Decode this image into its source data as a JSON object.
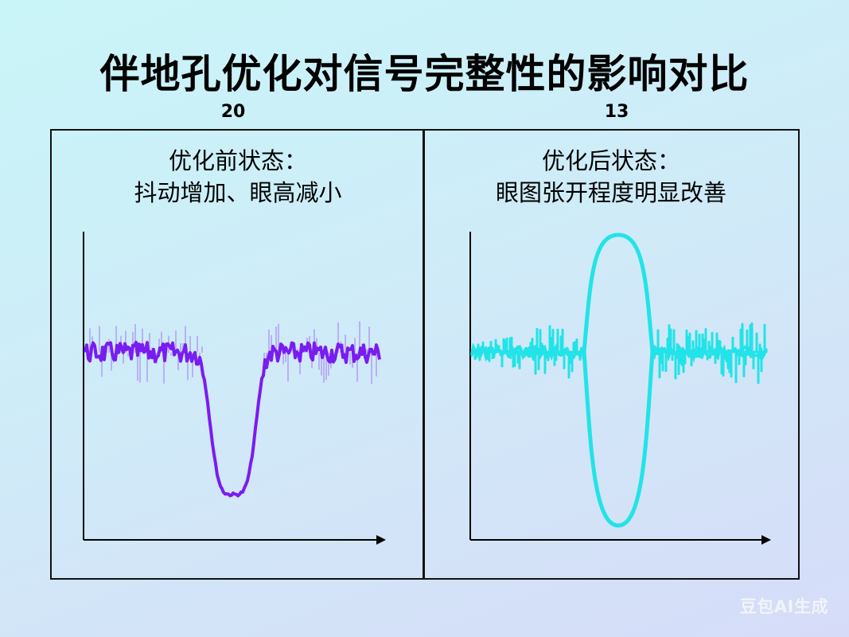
{
  "title": "伴地孔优化对信号完整性的影响对比",
  "panels": [
    {
      "number_label": "20",
      "heading_line1": "优化前状态：",
      "heading_line2": "抖动增加、眼高减小",
      "trace_color": "#7a1cf0"
    },
    {
      "number_label": "13",
      "heading_line1": "优化后状态：",
      "heading_line2": "眼图张开程度明显改善",
      "trace_color": "#22e3e8"
    }
  ],
  "watermark": "豆包AI生成",
  "colors": {
    "background_top": "#c9f5f8",
    "background_bottom": "#d6dcf8",
    "frame": "#111111",
    "before_trace": "#7a1cf0",
    "after_trace": "#22e3e8"
  },
  "chart_data": [
    {
      "type": "line",
      "title": "优化前状态：抖动增加、眼高减小",
      "panel_number": "20",
      "xlabel": "",
      "ylabel": "",
      "axes": "unlabeled arrows, no ticks",
      "grid": false,
      "description": "Noisy purple signal around a baseline with a single deep negative dip (small eye opening, high jitter)",
      "x": [
        0,
        0.1,
        0.2,
        0.3,
        0.4,
        0.42,
        0.45,
        0.48,
        0.5,
        0.52,
        0.55,
        0.58,
        0.6,
        0.7,
        0.8,
        0.9,
        1.0
      ],
      "values": [
        0.6,
        0.61,
        0.6,
        0.61,
        0.6,
        0.58,
        0.4,
        0.2,
        0.15,
        0.2,
        0.45,
        0.6,
        0.61,
        0.6,
        0.61,
        0.6,
        0.6
      ],
      "noise_amplitude": 0.08
    },
    {
      "type": "line",
      "title": "优化后状态：眼图张开程度明显改善",
      "panel_number": "13",
      "xlabel": "",
      "ylabel": "",
      "axes": "unlabeled arrows, no ticks",
      "grid": false,
      "description": "Cyan noisy signal around a baseline with a large, wide-open elliptical eye in the center",
      "eye_center_x": 0.5,
      "eye_width": 0.23,
      "eye_height": 0.96,
      "baseline": 0.6,
      "noise_amplitude": 0.15
    }
  ]
}
